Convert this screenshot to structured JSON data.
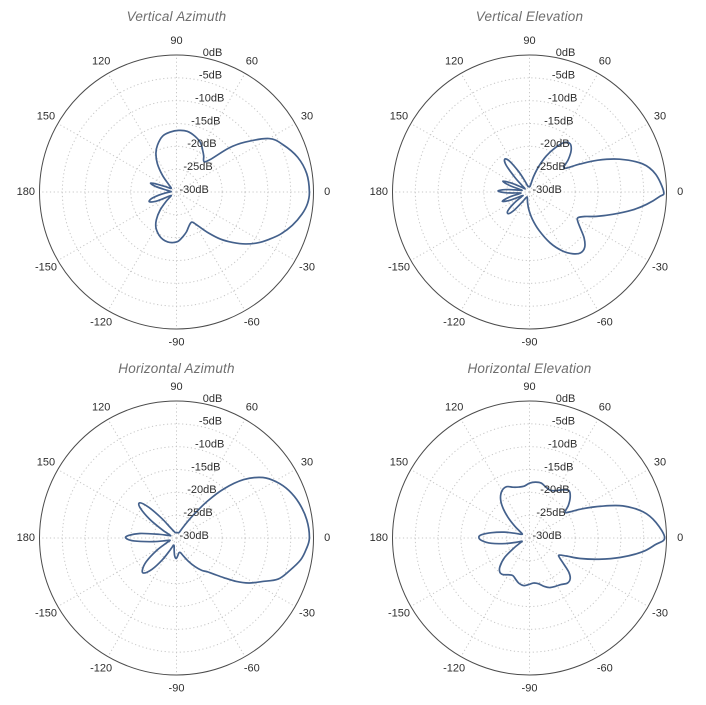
{
  "styles": {
    "background": "#ffffff",
    "curve_color": "#44618c",
    "grid_color": "#c7c7c7",
    "outline_color": "#4b4b4b",
    "tick_label_color": "#2e2e2e",
    "title_color": "#6e6e6e"
  },
  "chart_data": {
    "type": "polar",
    "layout": "2x2 grid of polar antenna radiation patterns",
    "units": "dB",
    "grid": "dotted rings every 5dB, dotted spokes every 30deg, solid outer circle",
    "legend_position": "none",
    "r_axis": {
      "min": -30,
      "max": 0,
      "step": 5,
      "ticks": [
        {
          "db": 0,
          "label": "0dB"
        },
        {
          "db": -5,
          "label": "-5dB"
        },
        {
          "db": -10,
          "label": "-10dB"
        },
        {
          "db": -15,
          "label": "-15dB"
        },
        {
          "db": -20,
          "label": "-20dB"
        },
        {
          "db": -25,
          "label": "-25dB"
        },
        {
          "db": -30,
          "label": "-30dB"
        }
      ]
    },
    "angle_axis": {
      "step_deg": 30,
      "ticks": [
        {
          "deg": 0,
          "label": "0"
        },
        {
          "deg": 30,
          "label": "30"
        },
        {
          "deg": 60,
          "label": "60"
        },
        {
          "deg": 90,
          "label": "90"
        },
        {
          "deg": 120,
          "label": "120"
        },
        {
          "deg": 150,
          "label": "150"
        },
        {
          "deg": 180,
          "label": "180"
        },
        {
          "deg": 210,
          "label": "-150"
        },
        {
          "deg": 240,
          "label": "-120"
        },
        {
          "deg": 270,
          "label": "-90"
        },
        {
          "deg": 300,
          "label": "-60"
        },
        {
          "deg": 330,
          "label": "-30"
        }
      ]
    },
    "charts": [
      {
        "title": "Vertical Azimuth",
        "points": [
          [
            0,
            -0.9
          ],
          [
            8,
            -1.2
          ],
          [
            16,
            -2.4
          ],
          [
            24,
            -4.5
          ],
          [
            30,
            -6.6
          ],
          [
            36,
            -11.4
          ],
          [
            40,
            -15
          ],
          [
            44,
            -19.8
          ],
          [
            48,
            -21
          ],
          [
            53,
            -20.1
          ],
          [
            58,
            -19.2
          ],
          [
            64,
            -18
          ],
          [
            72,
            -17.1
          ],
          [
            80,
            -16.5
          ],
          [
            88,
            -16.5
          ],
          [
            96,
            -16.8
          ],
          [
            104,
            -17.4
          ],
          [
            112,
            -18.9
          ],
          [
            118,
            -20.4
          ],
          [
            124,
            -22.5
          ],
          [
            130,
            -25.2
          ],
          [
            136,
            -27.6
          ],
          [
            142,
            -28.5
          ],
          [
            148,
            -28.5
          ],
          [
            153,
            -27.6
          ],
          [
            158,
            -25.5
          ],
          [
            161,
            -24
          ],
          [
            165,
            -25.2
          ],
          [
            170,
            -27.9
          ],
          [
            175,
            -28.8
          ],
          [
            180,
            -28.5
          ],
          [
            185,
            -27.6
          ],
          [
            190,
            -26.1
          ],
          [
            195,
            -24.3
          ],
          [
            200,
            -23.7
          ],
          [
            205,
            -25.5
          ],
          [
            210,
            -28.2
          ],
          [
            216,
            -28.5
          ],
          [
            222,
            -27
          ],
          [
            228,
            -24.6
          ],
          [
            234,
            -22.5
          ],
          [
            240,
            -21
          ],
          [
            248,
            -19.8
          ],
          [
            254,
            -19.2
          ],
          [
            260,
            -18.9
          ],
          [
            266,
            -18.9
          ],
          [
            272,
            -19.2
          ],
          [
            278,
            -20.1
          ],
          [
            284,
            -21
          ],
          [
            289,
            -21.9
          ],
          [
            294,
            -22.5
          ],
          [
            298,
            -22.5
          ],
          [
            303,
            -21
          ],
          [
            308,
            -18.6
          ],
          [
            313,
            -15.9
          ],
          [
            318,
            -13.5
          ],
          [
            323,
            -11.1
          ],
          [
            328,
            -9
          ],
          [
            333,
            -7.2
          ],
          [
            338,
            -5.4
          ],
          [
            344,
            -3.6
          ],
          [
            350,
            -2.1
          ],
          [
            355,
            -1.2
          ]
        ]
      },
      {
        "title": "Vertical Elevation",
        "points": [
          [
            0,
            -0.6
          ],
          [
            8,
            -2.1
          ],
          [
            14,
            -4.5
          ],
          [
            20,
            -9
          ],
          [
            25,
            -13.5
          ],
          [
            29,
            -17.4
          ],
          [
            33,
            -20.4
          ],
          [
            36,
            -20.7
          ],
          [
            40,
            -18.9
          ],
          [
            45,
            -17.1
          ],
          [
            50,
            -16.2
          ],
          [
            55,
            -16.8
          ],
          [
            60,
            -18.9
          ],
          [
            65,
            -21.3
          ],
          [
            70,
            -24
          ],
          [
            75,
            -26.4
          ],
          [
            80,
            -28.2
          ],
          [
            86,
            -28.8
          ],
          [
            94,
            -28.8
          ],
          [
            102,
            -28.8
          ],
          [
            108,
            -28.5
          ],
          [
            113,
            -27.3
          ],
          [
            118,
            -24.9
          ],
          [
            123,
            -21.9
          ],
          [
            127,
            -21
          ],
          [
            131,
            -22.2
          ],
          [
            135,
            -25.5
          ],
          [
            139,
            -27.9
          ],
          [
            144,
            -28.8
          ],
          [
            149,
            -27.9
          ],
          [
            154,
            -25.5
          ],
          [
            158,
            -23.7
          ],
          [
            162,
            -25.5
          ],
          [
            166,
            -28.2
          ],
          [
            170,
            -27.6
          ],
          [
            174,
            -24.9
          ],
          [
            178,
            -23.1
          ],
          [
            182,
            -24.9
          ],
          [
            186,
            -27.9
          ],
          [
            190,
            -27.6
          ],
          [
            194,
            -25.5
          ],
          [
            199,
            -23.7
          ],
          [
            203,
            -25.5
          ],
          [
            207,
            -28.2
          ],
          [
            211,
            -27.9
          ],
          [
            216,
            -25.8
          ],
          [
            221,
            -23.7
          ],
          [
            226,
            -23.4
          ],
          [
            230,
            -24.9
          ],
          [
            234,
            -27.3
          ],
          [
            238,
            -28.5
          ],
          [
            244,
            -28.8
          ],
          [
            252,
            -28.5
          ],
          [
            260,
            -27.6
          ],
          [
            268,
            -26.1
          ],
          [
            276,
            -24
          ],
          [
            284,
            -21.3
          ],
          [
            292,
            -18
          ],
          [
            299,
            -15.3
          ],
          [
            305,
            -13.5
          ],
          [
            310,
            -12.6
          ],
          [
            315,
            -12.9
          ],
          [
            320,
            -14.4
          ],
          [
            325,
            -16.5
          ],
          [
            329,
            -17.7
          ],
          [
            332,
            -18
          ],
          [
            336,
            -16.8
          ],
          [
            340,
            -14.4
          ],
          [
            345,
            -11.1
          ],
          [
            350,
            -7.2
          ],
          [
            354,
            -4.2
          ],
          [
            358,
            -1.5
          ]
        ]
      },
      {
        "title": "Horizontal Azimuth",
        "points": [
          [
            0,
            -0.9
          ],
          [
            8,
            -1.2
          ],
          [
            16,
            -2.1
          ],
          [
            23,
            -3.3
          ],
          [
            29,
            -4.8
          ],
          [
            35,
            -6.9
          ],
          [
            41,
            -10.5
          ],
          [
            46,
            -15
          ],
          [
            50,
            -19.5
          ],
          [
            54,
            -24
          ],
          [
            58,
            -27
          ],
          [
            63,
            -28.5
          ],
          [
            72,
            -28.8
          ],
          [
            82,
            -28.8
          ],
          [
            92,
            -28.8
          ],
          [
            102,
            -28.8
          ],
          [
            110,
            -28.5
          ],
          [
            117,
            -27.9
          ],
          [
            122,
            -27
          ],
          [
            127,
            -24.6
          ],
          [
            132,
            -21
          ],
          [
            136,
            -18.9
          ],
          [
            140,
            -19.5
          ],
          [
            145,
            -22.8
          ],
          [
            150,
            -26.4
          ],
          [
            156,
            -28.5
          ],
          [
            162,
            -28.2
          ],
          [
            168,
            -26.1
          ],
          [
            173,
            -21.9
          ],
          [
            177,
            -19.5
          ],
          [
            180,
            -18.9
          ],
          [
            184,
            -20.7
          ],
          [
            189,
            -24.9
          ],
          [
            194,
            -27.6
          ],
          [
            200,
            -28.5
          ],
          [
            206,
            -27.6
          ],
          [
            212,
            -24.9
          ],
          [
            218,
            -21.6
          ],
          [
            223,
            -19.8
          ],
          [
            227,
            -19.5
          ],
          [
            232,
            -21.3
          ],
          [
            237,
            -24.3
          ],
          [
            242,
            -27
          ],
          [
            247,
            -28.2
          ],
          [
            253,
            -28.2
          ],
          [
            259,
            -27.3
          ],
          [
            264,
            -26.1
          ],
          [
            269,
            -25.5
          ],
          [
            274,
            -26.1
          ],
          [
            279,
            -26.7
          ],
          [
            285,
            -26.7
          ],
          [
            291,
            -25.8
          ],
          [
            297,
            -24.3
          ],
          [
            303,
            -22.5
          ],
          [
            308,
            -21
          ],
          [
            312,
            -20.1
          ],
          [
            316,
            -18.6
          ],
          [
            320,
            -16.5
          ],
          [
            324,
            -13.8
          ],
          [
            328,
            -11.4
          ],
          [
            333,
            -9
          ],
          [
            338,
            -6
          ],
          [
            344,
            -4.2
          ],
          [
            350,
            -2.4
          ],
          [
            355,
            -1.5
          ]
        ]
      },
      {
        "title": "Horizontal Elevation",
        "points": [
          [
            0,
            -0.4
          ],
          [
            7,
            -2.1
          ],
          [
            13,
            -4.5
          ],
          [
            19,
            -8.4
          ],
          [
            24,
            -12.9
          ],
          [
            29,
            -16.8
          ],
          [
            33,
            -19.5
          ],
          [
            36,
            -20.4
          ],
          [
            40,
            -18.9
          ],
          [
            45,
            -17.4
          ],
          [
            50,
            -16.5
          ],
          [
            55,
            -17.1
          ],
          [
            60,
            -18
          ],
          [
            66,
            -18.6
          ],
          [
            72,
            -18.3
          ],
          [
            78,
            -17.7
          ],
          [
            84,
            -17.7
          ],
          [
            90,
            -18
          ],
          [
            96,
            -18.6
          ],
          [
            102,
            -18.6
          ],
          [
            108,
            -18.3
          ],
          [
            114,
            -17.7
          ],
          [
            120,
            -18
          ],
          [
            126,
            -19.2
          ],
          [
            131,
            -21
          ],
          [
            136,
            -23.4
          ],
          [
            141,
            -25.8
          ],
          [
            146,
            -27.6
          ],
          [
            151,
            -28.2
          ],
          [
            157,
            -27.9
          ],
          [
            162,
            -26.7
          ],
          [
            167,
            -24.3
          ],
          [
            172,
            -21.6
          ],
          [
            176,
            -19.5
          ],
          [
            179,
            -18.9
          ],
          [
            183,
            -19.5
          ],
          [
            188,
            -21.6
          ],
          [
            193,
            -24.6
          ],
          [
            198,
            -27
          ],
          [
            203,
            -28.2
          ],
          [
            208,
            -27.6
          ],
          [
            213,
            -25.8
          ],
          [
            218,
            -23.1
          ],
          [
            224,
            -21
          ],
          [
            229,
            -20.1
          ],
          [
            234,
            -20.1
          ],
          [
            240,
            -20.7
          ],
          [
            246,
            -21
          ],
          [
            252,
            -20.4
          ],
          [
            257,
            -19.8
          ],
          [
            263,
            -19.5
          ],
          [
            269,
            -19.8
          ],
          [
            275,
            -20.1
          ],
          [
            281,
            -19.8
          ],
          [
            287,
            -18.9
          ],
          [
            292,
            -18.3
          ],
          [
            298,
            -18
          ],
          [
            304,
            -17.7
          ],
          [
            310,
            -17.1
          ],
          [
            315,
            -17.4
          ],
          [
            319,
            -18.6
          ],
          [
            323,
            -20.7
          ],
          [
            327,
            -22.2
          ],
          [
            330,
            -22.5
          ],
          [
            334,
            -21
          ],
          [
            338,
            -18
          ],
          [
            343,
            -14.1
          ],
          [
            348,
            -9.6
          ],
          [
            353,
            -5.1
          ],
          [
            357,
            -2.4
          ]
        ]
      }
    ]
  }
}
